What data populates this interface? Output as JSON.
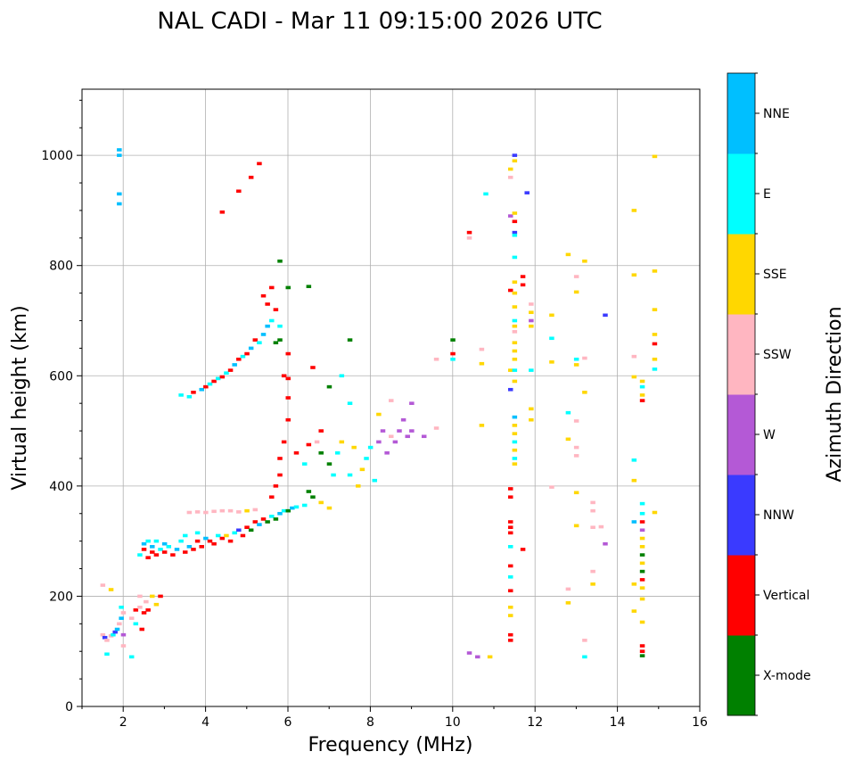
{
  "chart_data": {
    "type": "scatter",
    "title": "NAL CADI - Mar 11 09:15:00 2026 UTC",
    "xlabel": "Frequency (MHz)",
    "ylabel": "Virtual height (km)",
    "xlim": [
      1,
      16
    ],
    "ylim": [
      0,
      1120
    ],
    "xticks": [
      2,
      4,
      6,
      8,
      10,
      12,
      14,
      16
    ],
    "yticks": [
      0,
      200,
      400,
      600,
      800,
      1000
    ],
    "grid": true,
    "colorbar": {
      "label": "Azimuth Direction",
      "categories": [
        "X-mode",
        "Vertical",
        "NNW",
        "W",
        "SSW",
        "SSE",
        "E",
        "NNE"
      ],
      "colors": [
        "#008000",
        "#ff0000",
        "#3a3aff",
        "#b459d6",
        "#ffb6c1",
        "#ffd700",
        "#00ffff",
        "#00bfff"
      ]
    },
    "point_format": [
      "frequency_mhz",
      "height_km",
      "category_index"
    ],
    "points": [
      [
        1.5,
        130,
        4
      ],
      [
        1.55,
        125,
        2
      ],
      [
        1.6,
        120,
        4
      ],
      [
        1.6,
        95,
        6
      ],
      [
        1.7,
        128,
        4
      ],
      [
        1.75,
        130,
        6
      ],
      [
        1.8,
        135,
        2
      ],
      [
        1.85,
        140,
        7
      ],
      [
        1.9,
        150,
        4
      ],
      [
        1.95,
        160,
        7
      ],
      [
        1.95,
        180,
        6
      ],
      [
        2.0,
        170,
        4
      ],
      [
        2.0,
        130,
        3
      ],
      [
        2.0,
        110,
        4
      ],
      [
        2.2,
        160,
        4
      ],
      [
        2.3,
        175,
        1
      ],
      [
        2.3,
        150,
        6
      ],
      [
        2.4,
        180,
        4
      ],
      [
        2.4,
        200,
        4
      ],
      [
        2.45,
        140,
        1
      ],
      [
        2.5,
        170,
        1
      ],
      [
        2.55,
        190,
        4
      ],
      [
        2.6,
        175,
        1
      ],
      [
        2.7,
        200,
        5
      ],
      [
        2.8,
        185,
        5
      ],
      [
        2.9,
        200,
        1
      ],
      [
        1.5,
        220,
        4
      ],
      [
        1.7,
        212,
        5
      ],
      [
        2.2,
        90,
        6
      ],
      [
        2.4,
        275,
        6
      ],
      [
        2.5,
        285,
        1
      ],
      [
        2.5,
        295,
        7
      ],
      [
        2.6,
        270,
        1
      ],
      [
        2.6,
        300,
        6
      ],
      [
        2.7,
        280,
        1
      ],
      [
        2.7,
        290,
        7
      ],
      [
        2.8,
        275,
        1
      ],
      [
        2.8,
        300,
        6
      ],
      [
        2.9,
        285,
        6
      ],
      [
        3.0,
        280,
        1
      ],
      [
        3.0,
        295,
        7
      ],
      [
        3.1,
        290,
        6
      ],
      [
        3.2,
        275,
        1
      ],
      [
        3.3,
        285,
        7
      ],
      [
        3.4,
        300,
        6
      ],
      [
        3.5,
        280,
        1
      ],
      [
        3.5,
        310,
        6
      ],
      [
        3.6,
        290,
        7
      ],
      [
        3.7,
        285,
        1
      ],
      [
        3.8,
        300,
        1
      ],
      [
        3.8,
        315,
        6
      ],
      [
        3.9,
        290,
        1
      ],
      [
        4.0,
        305,
        7
      ],
      [
        4.1,
        300,
        1
      ],
      [
        4.2,
        295,
        1
      ],
      [
        4.3,
        310,
        6
      ],
      [
        4.4,
        305,
        1
      ],
      [
        4.5,
        310,
        5
      ],
      [
        4.6,
        300,
        1
      ],
      [
        4.7,
        315,
        6
      ],
      [
        4.8,
        320,
        2
      ],
      [
        4.9,
        310,
        1
      ],
      [
        5.0,
        325,
        1
      ],
      [
        5.1,
        320,
        0
      ],
      [
        5.2,
        335,
        1
      ],
      [
        5.3,
        330,
        7
      ],
      [
        5.4,
        340,
        1
      ],
      [
        5.5,
        335,
        0
      ],
      [
        5.6,
        345,
        6
      ],
      [
        5.7,
        340,
        0
      ],
      [
        5.8,
        350,
        7
      ],
      [
        5.9,
        355,
        6
      ],
      [
        6.0,
        355,
        0
      ],
      [
        6.1,
        360,
        7
      ],
      [
        6.2,
        362,
        6
      ],
      [
        6.4,
        365,
        6
      ],
      [
        6.5,
        390,
        0
      ],
      [
        6.6,
        380,
        0
      ],
      [
        6.8,
        370,
        5
      ],
      [
        7.0,
        360,
        5
      ],
      [
        3.6,
        352,
        4
      ],
      [
        3.8,
        353,
        4
      ],
      [
        4.0,
        352,
        4
      ],
      [
        4.2,
        354,
        4
      ],
      [
        4.4,
        355,
        4
      ],
      [
        4.6,
        355,
        4
      ],
      [
        4.8,
        353,
        4
      ],
      [
        5.0,
        355,
        5
      ],
      [
        5.2,
        357,
        4
      ],
      [
        3.4,
        565,
        6
      ],
      [
        3.6,
        562,
        6
      ],
      [
        3.7,
        570,
        1
      ],
      [
        3.9,
        575,
        7
      ],
      [
        4.0,
        580,
        1
      ],
      [
        4.1,
        585,
        6
      ],
      [
        4.2,
        590,
        1
      ],
      [
        4.3,
        595,
        6
      ],
      [
        4.4,
        598,
        1
      ],
      [
        4.5,
        605,
        6
      ],
      [
        4.6,
        610,
        1
      ],
      [
        4.7,
        620,
        7
      ],
      [
        4.8,
        630,
        1
      ],
      [
        4.9,
        635,
        6
      ],
      [
        5.0,
        640,
        1
      ],
      [
        5.1,
        650,
        7
      ],
      [
        5.2,
        665,
        1
      ],
      [
        5.3,
        660,
        6
      ],
      [
        5.4,
        675,
        7
      ],
      [
        5.5,
        690,
        7
      ],
      [
        5.6,
        700,
        6
      ],
      [
        5.7,
        660,
        0
      ],
      [
        5.5,
        730,
        1
      ],
      [
        5.7,
        720,
        1
      ],
      [
        5.8,
        665,
        0
      ],
      [
        5.4,
        745,
        1
      ],
      [
        5.6,
        760,
        1
      ],
      [
        5.8,
        690,
        6
      ],
      [
        5.6,
        380,
        1
      ],
      [
        5.7,
        400,
        1
      ],
      [
        5.8,
        420,
        1
      ],
      [
        5.8,
        450,
        1
      ],
      [
        5.9,
        480,
        1
      ],
      [
        6.0,
        520,
        1
      ],
      [
        6.0,
        560,
        1
      ],
      [
        6.0,
        595,
        1
      ],
      [
        5.9,
        600,
        1
      ],
      [
        6.2,
        460,
        1
      ],
      [
        6.4,
        440,
        6
      ],
      [
        6.5,
        475,
        1
      ],
      [
        6.7,
        480,
        4
      ],
      [
        6.8,
        460,
        0
      ],
      [
        7.0,
        440,
        0
      ],
      [
        7.1,
        420,
        6
      ],
      [
        7.2,
        460,
        6
      ],
      [
        7.3,
        480,
        5
      ],
      [
        7.5,
        420,
        6
      ],
      [
        7.6,
        470,
        5
      ],
      [
        7.7,
        400,
        5
      ],
      [
        7.8,
        430,
        5
      ],
      [
        7.9,
        450,
        6
      ],
      [
        8.0,
        470,
        6
      ],
      [
        8.1,
        410,
        6
      ],
      [
        8.2,
        480,
        3
      ],
      [
        8.3,
        500,
        3
      ],
      [
        8.4,
        460,
        3
      ],
      [
        8.5,
        490,
        4
      ],
      [
        8.6,
        480,
        3
      ],
      [
        8.7,
        500,
        3
      ],
      [
        8.8,
        520,
        3
      ],
      [
        8.9,
        490,
        3
      ],
      [
        9.0,
        500,
        3
      ],
      [
        9.0,
        550,
        3
      ],
      [
        9.3,
        490,
        3
      ],
      [
        9.6,
        505,
        4
      ],
      [
        8.5,
        555,
        4
      ],
      [
        8.2,
        530,
        5
      ],
      [
        7.5,
        550,
        6
      ],
      [
        7.3,
        600,
        6
      ],
      [
        7.0,
        580,
        0
      ],
      [
        6.6,
        615,
        1
      ],
      [
        7.5,
        665,
        0
      ],
      [
        6.8,
        500,
        1
      ],
      [
        6.0,
        640,
        1
      ],
      [
        1.9,
        1010,
        7
      ],
      [
        1.9,
        1000,
        7
      ],
      [
        1.9,
        930,
        7
      ],
      [
        1.9,
        912,
        7
      ],
      [
        4.4,
        897,
        1
      ],
      [
        4.8,
        935,
        1
      ],
      [
        5.1,
        960,
        1
      ],
      [
        5.3,
        985,
        1
      ],
      [
        5.8,
        808,
        0
      ],
      [
        6.0,
        760,
        0
      ],
      [
        6.5,
        762,
        0
      ],
      [
        10.4,
        860,
        1
      ],
      [
        10.4,
        850,
        4
      ],
      [
        10.4,
        97,
        3
      ],
      [
        10.6,
        90,
        3
      ],
      [
        10.9,
        90,
        5
      ],
      [
        10.0,
        665,
        0
      ],
      [
        10.0,
        640,
        1
      ],
      [
        10.0,
        630,
        6
      ],
      [
        9.6,
        630,
        4
      ],
      [
        10.8,
        930,
        6
      ],
      [
        10.7,
        648,
        4
      ],
      [
        10.7,
        622,
        5
      ],
      [
        10.7,
        510,
        5
      ],
      [
        11.4,
        975,
        5
      ],
      [
        11.4,
        960,
        4
      ],
      [
        11.4,
        890,
        3
      ],
      [
        11.4,
        755,
        1
      ],
      [
        11.4,
        610,
        5
      ],
      [
        11.4,
        575,
        2
      ],
      [
        11.4,
        395,
        1
      ],
      [
        11.4,
        380,
        1
      ],
      [
        11.4,
        335,
        1
      ],
      [
        11.4,
        325,
        1
      ],
      [
        11.4,
        315,
        1
      ],
      [
        11.4,
        290,
        6
      ],
      [
        11.4,
        255,
        1
      ],
      [
        11.4,
        235,
        6
      ],
      [
        11.4,
        210,
        1
      ],
      [
        11.4,
        180,
        5
      ],
      [
        11.4,
        165,
        5
      ],
      [
        11.4,
        130,
        1
      ],
      [
        11.4,
        120,
        1
      ],
      [
        11.5,
        1000,
        2
      ],
      [
        11.5,
        990,
        5
      ],
      [
        11.5,
        895,
        5
      ],
      [
        11.5,
        880,
        1
      ],
      [
        11.5,
        860,
        2
      ],
      [
        11.5,
        855,
        6
      ],
      [
        11.5,
        815,
        6
      ],
      [
        11.5,
        770,
        5
      ],
      [
        11.5,
        750,
        5
      ],
      [
        11.5,
        725,
        5
      ],
      [
        11.5,
        700,
        6
      ],
      [
        11.5,
        690,
        5
      ],
      [
        11.5,
        680,
        4
      ],
      [
        11.5,
        660,
        5
      ],
      [
        11.5,
        645,
        5
      ],
      [
        11.5,
        630,
        5
      ],
      [
        11.5,
        610,
        6
      ],
      [
        11.5,
        590,
        5
      ],
      [
        11.5,
        525,
        7
      ],
      [
        11.5,
        510,
        5
      ],
      [
        11.5,
        495,
        5
      ],
      [
        11.5,
        480,
        6
      ],
      [
        11.5,
        465,
        5
      ],
      [
        11.5,
        450,
        6
      ],
      [
        11.5,
        440,
        5
      ],
      [
        11.9,
        730,
        4
      ],
      [
        11.9,
        715,
        5
      ],
      [
        11.9,
        700,
        3
      ],
      [
        11.9,
        690,
        5
      ],
      [
        11.9,
        540,
        5
      ],
      [
        11.9,
        520,
        5
      ],
      [
        11.7,
        780,
        1
      ],
      [
        11.7,
        765,
        1
      ],
      [
        11.8,
        932,
        2
      ],
      [
        11.7,
        285,
        1
      ],
      [
        11.9,
        610,
        6
      ],
      [
        12.4,
        710,
        5
      ],
      [
        12.4,
        668,
        6
      ],
      [
        12.4,
        625,
        5
      ],
      [
        12.4,
        398,
        4
      ],
      [
        12.8,
        820,
        5
      ],
      [
        12.8,
        533,
        6
      ],
      [
        12.8,
        485,
        5
      ],
      [
        12.8,
        213,
        4
      ],
      [
        12.8,
        188,
        5
      ],
      [
        13.0,
        780,
        4
      ],
      [
        13.0,
        752,
        5
      ],
      [
        13.0,
        630,
        6
      ],
      [
        13.0,
        620,
        5
      ],
      [
        13.0,
        518,
        4
      ],
      [
        13.0,
        470,
        4
      ],
      [
        13.0,
        455,
        4
      ],
      [
        13.0,
        388,
        5
      ],
      [
        13.0,
        328,
        5
      ],
      [
        13.2,
        808,
        5
      ],
      [
        13.2,
        632,
        4
      ],
      [
        13.2,
        570,
        5
      ],
      [
        13.2,
        120,
        4
      ],
      [
        13.2,
        90,
        6
      ],
      [
        13.4,
        370,
        4
      ],
      [
        13.4,
        355,
        4
      ],
      [
        13.4,
        325,
        4
      ],
      [
        13.4,
        245,
        4
      ],
      [
        13.4,
        222,
        5
      ],
      [
        13.6,
        326,
        4
      ],
      [
        13.7,
        295,
        3
      ],
      [
        13.7,
        710,
        2
      ],
      [
        14.4,
        900,
        5
      ],
      [
        14.4,
        783,
        5
      ],
      [
        14.4,
        635,
        4
      ],
      [
        14.4,
        598,
        5
      ],
      [
        14.4,
        447,
        6
      ],
      [
        14.4,
        410,
        5
      ],
      [
        14.4,
        335,
        7
      ],
      [
        14.4,
        222,
        5
      ],
      [
        14.4,
        173,
        5
      ],
      [
        14.6,
        590,
        5
      ],
      [
        14.6,
        580,
        6
      ],
      [
        14.6,
        565,
        5
      ],
      [
        14.6,
        555,
        1
      ],
      [
        14.6,
        368,
        6
      ],
      [
        14.6,
        350,
        6
      ],
      [
        14.6,
        335,
        1
      ],
      [
        14.6,
        320,
        3
      ],
      [
        14.6,
        305,
        5
      ],
      [
        14.6,
        290,
        5
      ],
      [
        14.6,
        275,
        0
      ],
      [
        14.6,
        260,
        5
      ],
      [
        14.6,
        245,
        0
      ],
      [
        14.6,
        230,
        1
      ],
      [
        14.6,
        215,
        5
      ],
      [
        14.6,
        195,
        5
      ],
      [
        14.6,
        153,
        5
      ],
      [
        14.6,
        110,
        1
      ],
      [
        14.6,
        100,
        1
      ],
      [
        14.6,
        92,
        0
      ],
      [
        14.9,
        998,
        5
      ],
      [
        14.9,
        790,
        5
      ],
      [
        14.9,
        720,
        5
      ],
      [
        14.9,
        675,
        5
      ],
      [
        14.9,
        658,
        1
      ],
      [
        14.9,
        630,
        5
      ],
      [
        14.9,
        612,
        6
      ],
      [
        14.9,
        352,
        5
      ]
    ]
  }
}
